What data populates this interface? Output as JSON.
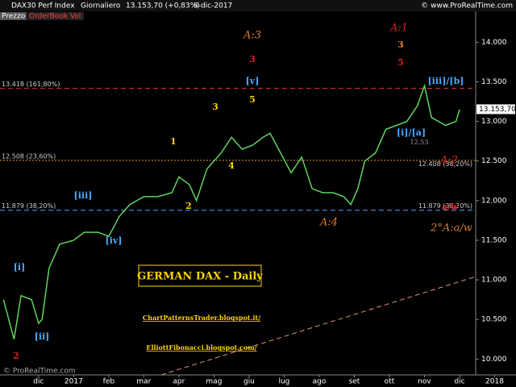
{
  "header": {
    "symbol": "DAX30 Perf Index",
    "period": "Giornaliero",
    "quote": "13.153,70 (+0,83%)",
    "date": "8-dic-2017",
    "source": "© www.ProRealTime.com"
  },
  "tabs": [
    "Prezzo",
    "OrderBook Vol"
  ],
  "footer": "© ProRealTime.com",
  "annotations": [
    "A:3",
    "3",
    "A:1",
    "3",
    "5",
    "[v]",
    "[iii]/[b]",
    "3",
    "5",
    "[i]/[a]",
    "1",
    "4",
    "A:2",
    "[iii]",
    "2",
    "a/w",
    "A:4",
    "2°A:a/w",
    "[iv]",
    "[i]",
    "[ii]",
    "2",
    "GERMAN DAX - Daily",
    "ChartPatternsTrader.blogspot.it/",
    "ElliottFibonacci.blogspot.com/",
    "12.53"
  ],
  "chart_data": {
    "type": "line",
    "color": "#5fd35f",
    "x": [
      11.0,
      11.3,
      11.5,
      11.8,
      12.0,
      12.1,
      12.3,
      12.6,
      13.0,
      13.3,
      13.7,
      14.0,
      14.3,
      14.6,
      15.0,
      15.4,
      15.8,
      16.0,
      16.3,
      16.5,
      16.8,
      17.2,
      17.5,
      17.8,
      18.1,
      18.4,
      18.6,
      18.9,
      19.2,
      19.5,
      19.8,
      20.1,
      20.4,
      20.7,
      20.9,
      21.1,
      21.3,
      21.6,
      21.9,
      22.2,
      22.5,
      22.8,
      23.0,
      23.2,
      23.4,
      23.6,
      23.9,
      24.0
    ],
    "values": [
      10750,
      10250,
      10800,
      10750,
      10450,
      10500,
      11150,
      11450,
      11500,
      11600,
      11600,
      11550,
      11800,
      11950,
      12050,
      12050,
      12100,
      12300,
      12200,
      12000,
      12400,
      12600,
      12800,
      12650,
      12700,
      12800,
      12850,
      12600,
      12350,
      12550,
      12150,
      12100,
      12100,
      12050,
      11950,
      12150,
      12500,
      12600,
      12900,
      12950,
      13000,
      13200,
      13450,
      13050,
      13000,
      12950,
      13000,
      13150
    ],
    "xlim": [
      10.9,
      24.46
    ],
    "xticks": [
      {
        "value": 12,
        "label": "dic"
      },
      {
        "value": 13,
        "label": "2017"
      },
      {
        "value": 14,
        "label": "feb"
      },
      {
        "value": 15,
        "label": "mar"
      },
      {
        "value": 16,
        "label": "apr"
      },
      {
        "value": 17,
        "label": "mag"
      },
      {
        "value": 18,
        "label": "giu"
      },
      {
        "value": 19,
        "label": "lug"
      },
      {
        "value": 20,
        "label": "ago"
      },
      {
        "value": 21,
        "label": "set"
      },
      {
        "value": 22,
        "label": "ott"
      },
      {
        "value": 23,
        "label": "nov"
      },
      {
        "value": 24,
        "label": "dic"
      },
      {
        "value": 25,
        "label": "2018"
      }
    ],
    "ylim": [
      9800,
      14390
    ],
    "yticks": [
      {
        "value": 10000,
        "label": "10.000"
      },
      {
        "value": 10500,
        "label": "10.500"
      },
      {
        "value": 11000,
        "label": "11.000"
      },
      {
        "value": 11500,
        "label": "11.500"
      },
      {
        "value": 12000,
        "label": "12.000"
      },
      {
        "value": 12500,
        "label": "12.500"
      },
      {
        "value": 13000,
        "label": "13.000"
      },
      {
        "value": 13500,
        "label": "13.500"
      },
      {
        "value": 14000,
        "label": "14.000"
      }
    ],
    "levels": [
      {
        "value": 13418,
        "label": "13.418 (161,80%)",
        "color": "#e03030"
      },
      {
        "value": 12508,
        "label": "12.508 (23,60%)",
        "color": "#e0a030"
      },
      {
        "value": 11879,
        "label": "11.879 (38,20%)",
        "color": "#4aa8ff"
      }
    ],
    "right_level_labels": [
      {
        "value": 12408,
        "label": "12.408 (38,20%)"
      },
      {
        "value": 11879,
        "label": "11.879 (38,20%)"
      }
    ],
    "last_price": {
      "value": 13153.7,
      "label": "13.153,70"
    }
  }
}
